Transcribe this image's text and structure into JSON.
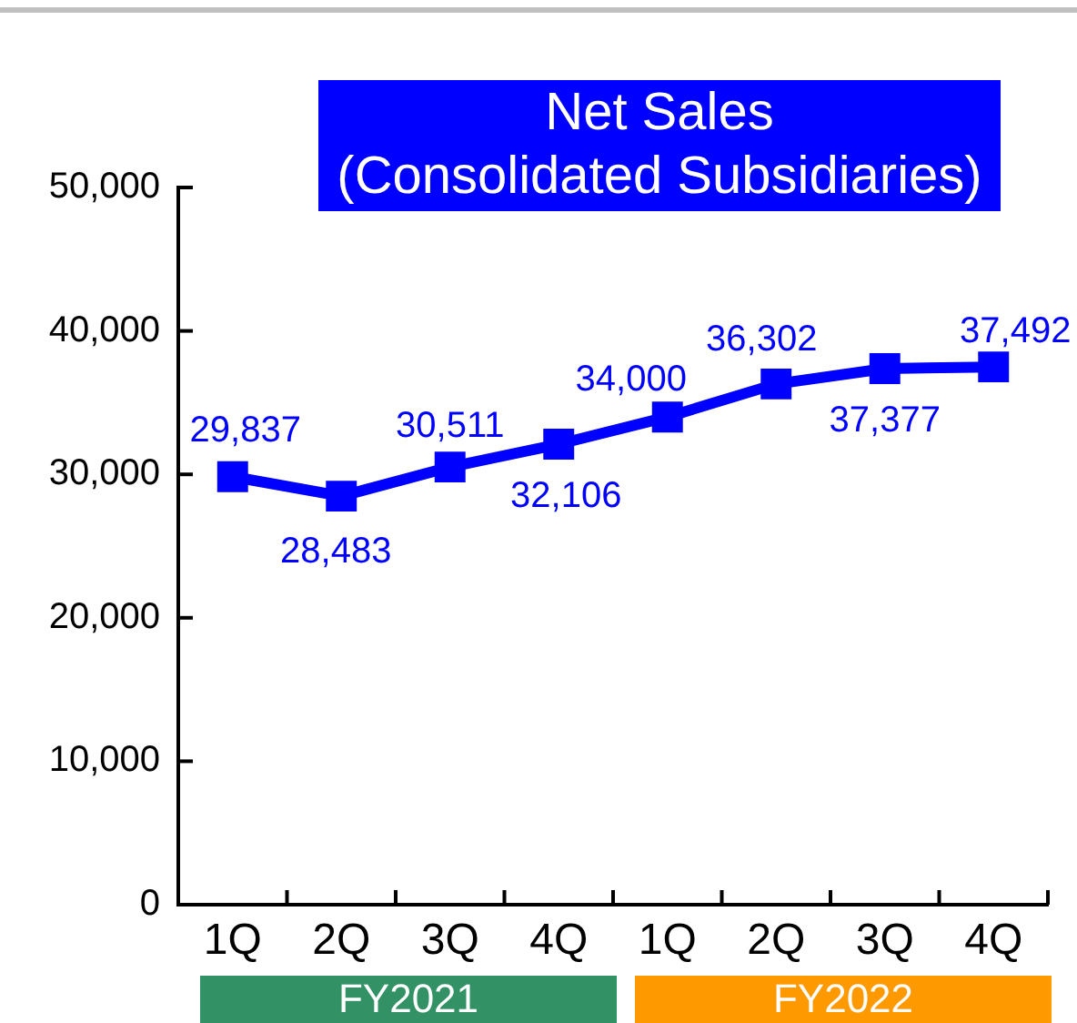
{
  "chart_data": {
    "type": "line",
    "title": "Net Sales",
    "subtitle": "(Consolidated Subsidiaries)",
    "categories": [
      "1Q",
      "2Q",
      "3Q",
      "4Q",
      "1Q",
      "2Q",
      "3Q",
      "4Q"
    ],
    "values": [
      29837,
      28483,
      30511,
      32106,
      34000,
      36302,
      37377,
      37492
    ],
    "value_labels": [
      "29,837",
      "28,483",
      "30,511",
      "32,106",
      "34,000",
      "36,302",
      "37,377",
      "37,492"
    ],
    "color": "#0000ff",
    "marker": "square",
    "line_style": "solid",
    "ylim": [
      0,
      50000
    ],
    "yticks": [
      {
        "value": 0,
        "label": "0"
      },
      {
        "value": 10000,
        "label": "10,000"
      },
      {
        "value": 20000,
        "label": "20,000"
      },
      {
        "value": 30000,
        "label": "30,000"
      },
      {
        "value": 40000,
        "label": "40,000"
      },
      {
        "value": 50000,
        "label": "50,000"
      }
    ],
    "annotations": [
      "FY2021",
      "FY2022"
    ]
  }
}
